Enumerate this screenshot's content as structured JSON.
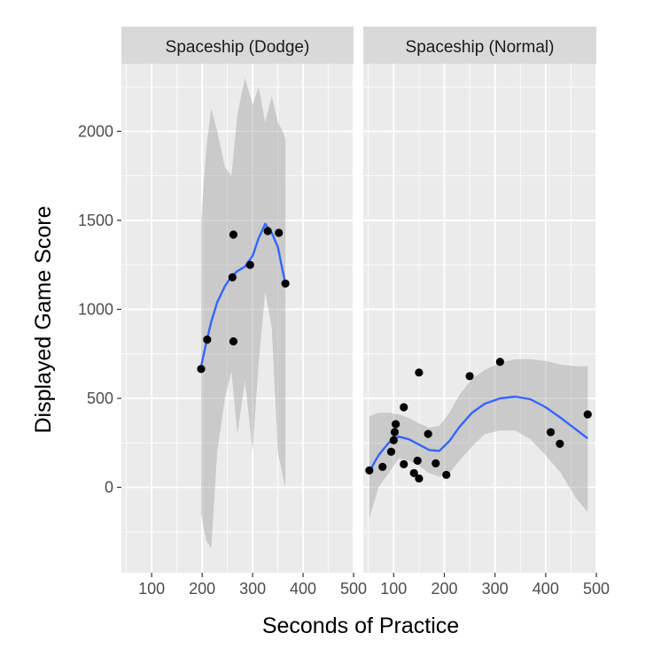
{
  "chart_data": {
    "type": "scatter",
    "xlabel": "Seconds of Practice",
    "ylabel": "Displayed Game Score",
    "xlim": [
      40,
      500
    ],
    "ylim": [
      -480,
      2380
    ],
    "x_ticks": [
      100,
      200,
      300,
      400,
      500
    ],
    "y_ticks": [
      0,
      500,
      1000,
      1500,
      2000
    ],
    "x_tick_labels": [
      "100",
      "200",
      "300",
      "400",
      "500"
    ],
    "y_tick_labels": [
      "0",
      "500",
      "1000",
      "1500",
      "2000"
    ],
    "grid": true,
    "colors": {
      "panel_bg": "#ebebeb",
      "strip_bg": "#d9d9d9",
      "grid": "#ffffff",
      "point": "#000000",
      "smooth_line": "#3366ff",
      "ribbon": "#999999"
    },
    "panels": [
      {
        "strip": "Spaceship (Dodge)",
        "points": [
          {
            "x": 198,
            "y": 665
          },
          {
            "x": 210,
            "y": 830
          },
          {
            "x": 260,
            "y": 1180
          },
          {
            "x": 262,
            "y": 1420
          },
          {
            "x": 262,
            "y": 820
          },
          {
            "x": 295,
            "y": 1250
          },
          {
            "x": 330,
            "y": 1440
          },
          {
            "x": 352,
            "y": 1430
          },
          {
            "x": 365,
            "y": 1145
          }
        ],
        "smooth": [
          {
            "x": 198,
            "y": 680,
            "lo": -150,
            "hi": 1500
          },
          {
            "x": 208,
            "y": 810,
            "lo": -300,
            "hi": 1900
          },
          {
            "x": 218,
            "y": 930,
            "lo": -340,
            "hi": 2130
          },
          {
            "x": 230,
            "y": 1040,
            "lo": 200,
            "hi": 2000
          },
          {
            "x": 245,
            "y": 1130,
            "lo": 500,
            "hi": 1800
          },
          {
            "x": 258,
            "y": 1185,
            "lo": 650,
            "hi": 1750
          },
          {
            "x": 270,
            "y": 1215,
            "lo": 300,
            "hi": 2100
          },
          {
            "x": 285,
            "y": 1240,
            "lo": 600,
            "hi": 2300
          },
          {
            "x": 300,
            "y": 1300,
            "lo": 200,
            "hi": 2150
          },
          {
            "x": 312,
            "y": 1400,
            "lo": 700,
            "hi": 2250
          },
          {
            "x": 325,
            "y": 1480,
            "lo": 1100,
            "hi": 2050
          },
          {
            "x": 338,
            "y": 1430,
            "lo": 900,
            "hi": 2200
          },
          {
            "x": 350,
            "y": 1350,
            "lo": 200,
            "hi": 2050
          },
          {
            "x": 360,
            "y": 1210,
            "lo": 60,
            "hi": 2000
          },
          {
            "x": 365,
            "y": 1145,
            "lo": 0,
            "hi": 1950
          }
        ]
      },
      {
        "strip": "Spaceship (Normal)",
        "points": [
          {
            "x": 52,
            "y": 95
          },
          {
            "x": 78,
            "y": 115
          },
          {
            "x": 95,
            "y": 200
          },
          {
            "x": 100,
            "y": 265
          },
          {
            "x": 102,
            "y": 310
          },
          {
            "x": 104,
            "y": 355
          },
          {
            "x": 120,
            "y": 450
          },
          {
            "x": 120,
            "y": 130
          },
          {
            "x": 140,
            "y": 80
          },
          {
            "x": 147,
            "y": 150
          },
          {
            "x": 150,
            "y": 50
          },
          {
            "x": 150,
            "y": 645
          },
          {
            "x": 168,
            "y": 300
          },
          {
            "x": 183,
            "y": 135
          },
          {
            "x": 204,
            "y": 70
          },
          {
            "x": 250,
            "y": 625
          },
          {
            "x": 310,
            "y": 705
          },
          {
            "x": 410,
            "y": 310
          },
          {
            "x": 428,
            "y": 245
          },
          {
            "x": 483,
            "y": 410
          }
        ],
        "smooth": [
          {
            "x": 52,
            "y": 90,
            "lo": -170,
            "hi": 400
          },
          {
            "x": 70,
            "y": 180,
            "lo": 0,
            "hi": 420
          },
          {
            "x": 90,
            "y": 250,
            "lo": 80,
            "hi": 420
          },
          {
            "x": 110,
            "y": 285,
            "lo": 160,
            "hi": 410
          },
          {
            "x": 130,
            "y": 270,
            "lo": 150,
            "hi": 390
          },
          {
            "x": 150,
            "y": 240,
            "lo": 120,
            "hi": 360
          },
          {
            "x": 170,
            "y": 210,
            "lo": 80,
            "hi": 335
          },
          {
            "x": 190,
            "y": 205,
            "lo": 60,
            "hi": 345
          },
          {
            "x": 210,
            "y": 260,
            "lo": 80,
            "hi": 420
          },
          {
            "x": 230,
            "y": 340,
            "lo": 150,
            "hi": 520
          },
          {
            "x": 255,
            "y": 420,
            "lo": 230,
            "hi": 610
          },
          {
            "x": 280,
            "y": 470,
            "lo": 300,
            "hi": 660
          },
          {
            "x": 310,
            "y": 500,
            "lo": 320,
            "hi": 700
          },
          {
            "x": 340,
            "y": 510,
            "lo": 320,
            "hi": 720
          },
          {
            "x": 370,
            "y": 495,
            "lo": 270,
            "hi": 720
          },
          {
            "x": 400,
            "y": 450,
            "lo": 180,
            "hi": 710
          },
          {
            "x": 430,
            "y": 390,
            "lo": 80,
            "hi": 690
          },
          {
            "x": 460,
            "y": 325,
            "lo": -60,
            "hi": 680
          },
          {
            "x": 483,
            "y": 275,
            "lo": -140,
            "hi": 680
          }
        ]
      }
    ]
  }
}
